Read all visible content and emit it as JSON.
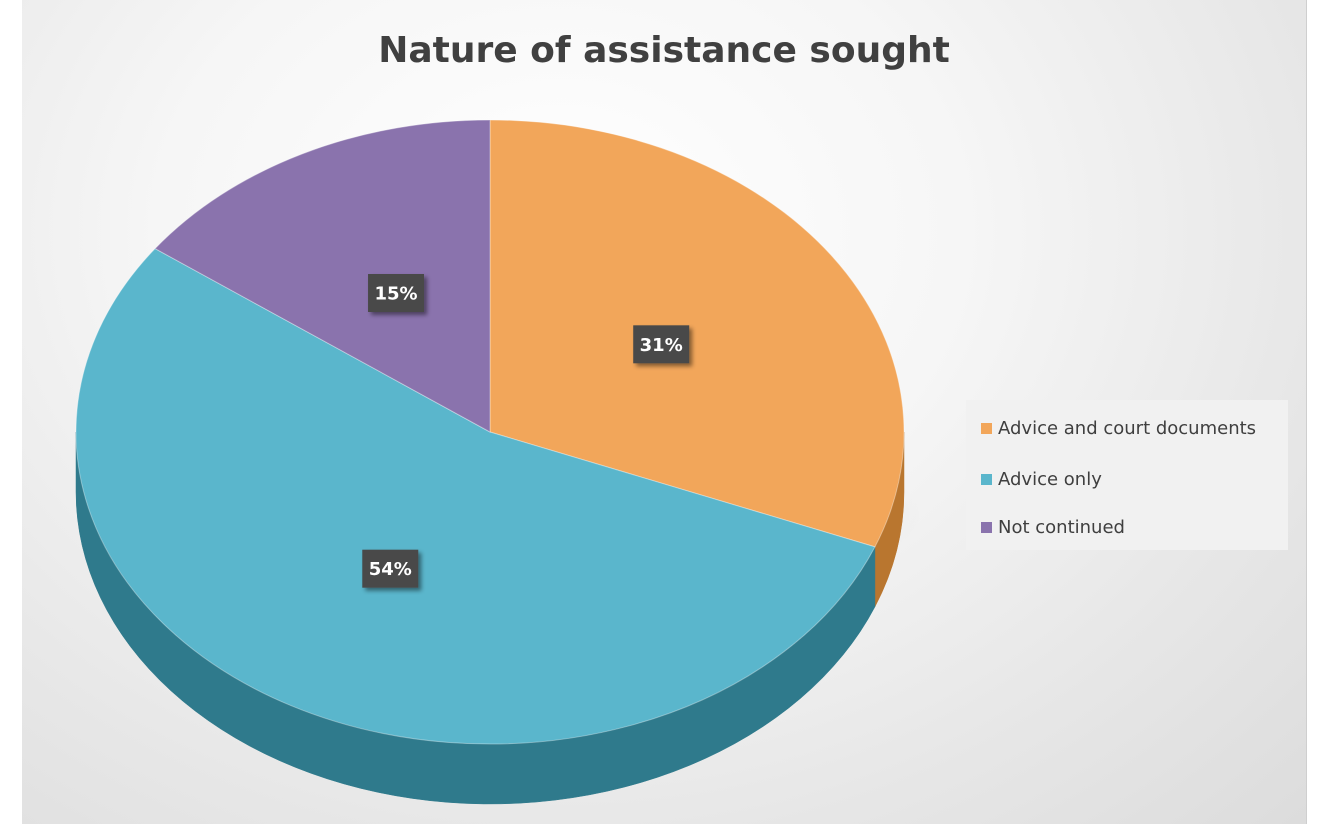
{
  "chart_data": {
    "type": "pie",
    "title": "Nature of assistance sought",
    "slices": [
      {
        "label": "Advice and court documents",
        "value": 31,
        "display": "31%",
        "color": "#f2a65a",
        "side_color": "#b9762f"
      },
      {
        "label": "Advice only",
        "value": 54,
        "display": "54%",
        "color": "#5ab6cc",
        "side_color": "#2f7a8c"
      },
      {
        "label": "Not continued",
        "value": 15,
        "display": "15%",
        "color": "#8a73ad",
        "side_color": "#5b4778"
      }
    ],
    "legend_position": "right",
    "style": "3d"
  }
}
